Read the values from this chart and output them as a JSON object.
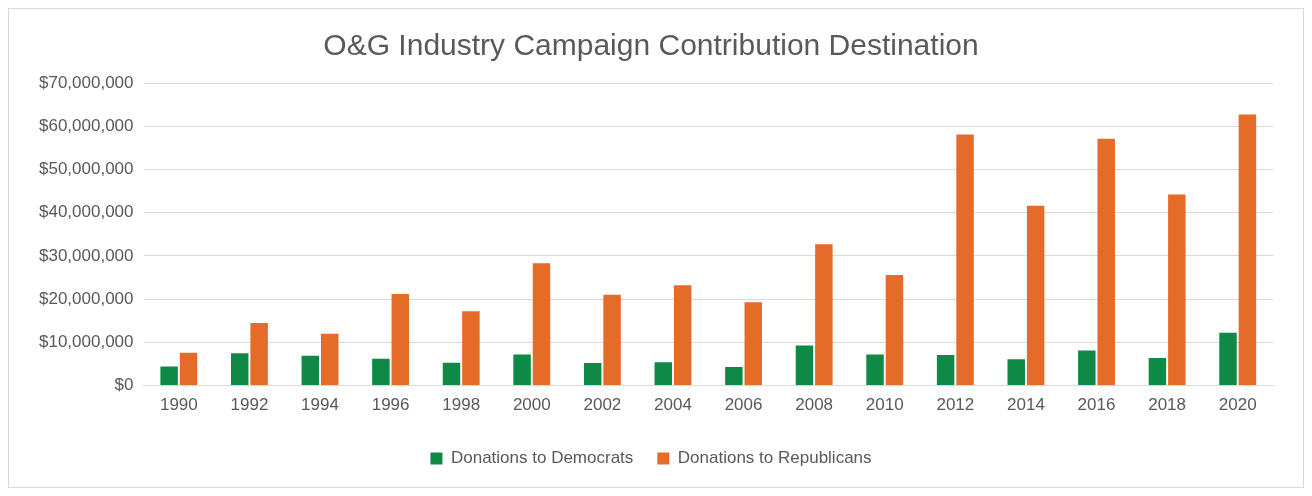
{
  "chart_data": {
    "type": "bar",
    "title": "O&G Industry Campaign Contribution Destination",
    "categories": [
      "1990",
      "1992",
      "1994",
      "1996",
      "1998",
      "2000",
      "2002",
      "2004",
      "2006",
      "2008",
      "2010",
      "2012",
      "2014",
      "2016",
      "2018",
      "2020"
    ],
    "series": [
      {
        "name": "Donations to Democrats",
        "color": "#0f8a46",
        "values": [
          4400000,
          7500000,
          6900000,
          6200000,
          5300000,
          7200000,
          5200000,
          5400000,
          4300000,
          9300000,
          7200000,
          7100000,
          6100000,
          8100000,
          6400000,
          12200000
        ]
      },
      {
        "name": "Donations to Republicans",
        "color": "#e46b28",
        "values": [
          7600000,
          14500000,
          12000000,
          21200000,
          17200000,
          28300000,
          21000000,
          23200000,
          19300000,
          32700000,
          25600000,
          58100000,
          41600000,
          57100000,
          44200000,
          62700000
        ]
      }
    ],
    "ylim": [
      0,
      70000000
    ],
    "yticks": [
      {
        "value": 0,
        "label": "$0"
      },
      {
        "value": 10000000,
        "label": "$10,000,000"
      },
      {
        "value": 20000000,
        "label": "$20,000,000"
      },
      {
        "value": 30000000,
        "label": "$30,000,000"
      },
      {
        "value": 40000000,
        "label": "$40,000,000"
      },
      {
        "value": 50000000,
        "label": "$50,000,000"
      },
      {
        "value": 60000000,
        "label": "$60,000,000"
      },
      {
        "value": 70000000,
        "label": "$70,000,000"
      }
    ],
    "grid": "y",
    "legend": "bottom"
  }
}
